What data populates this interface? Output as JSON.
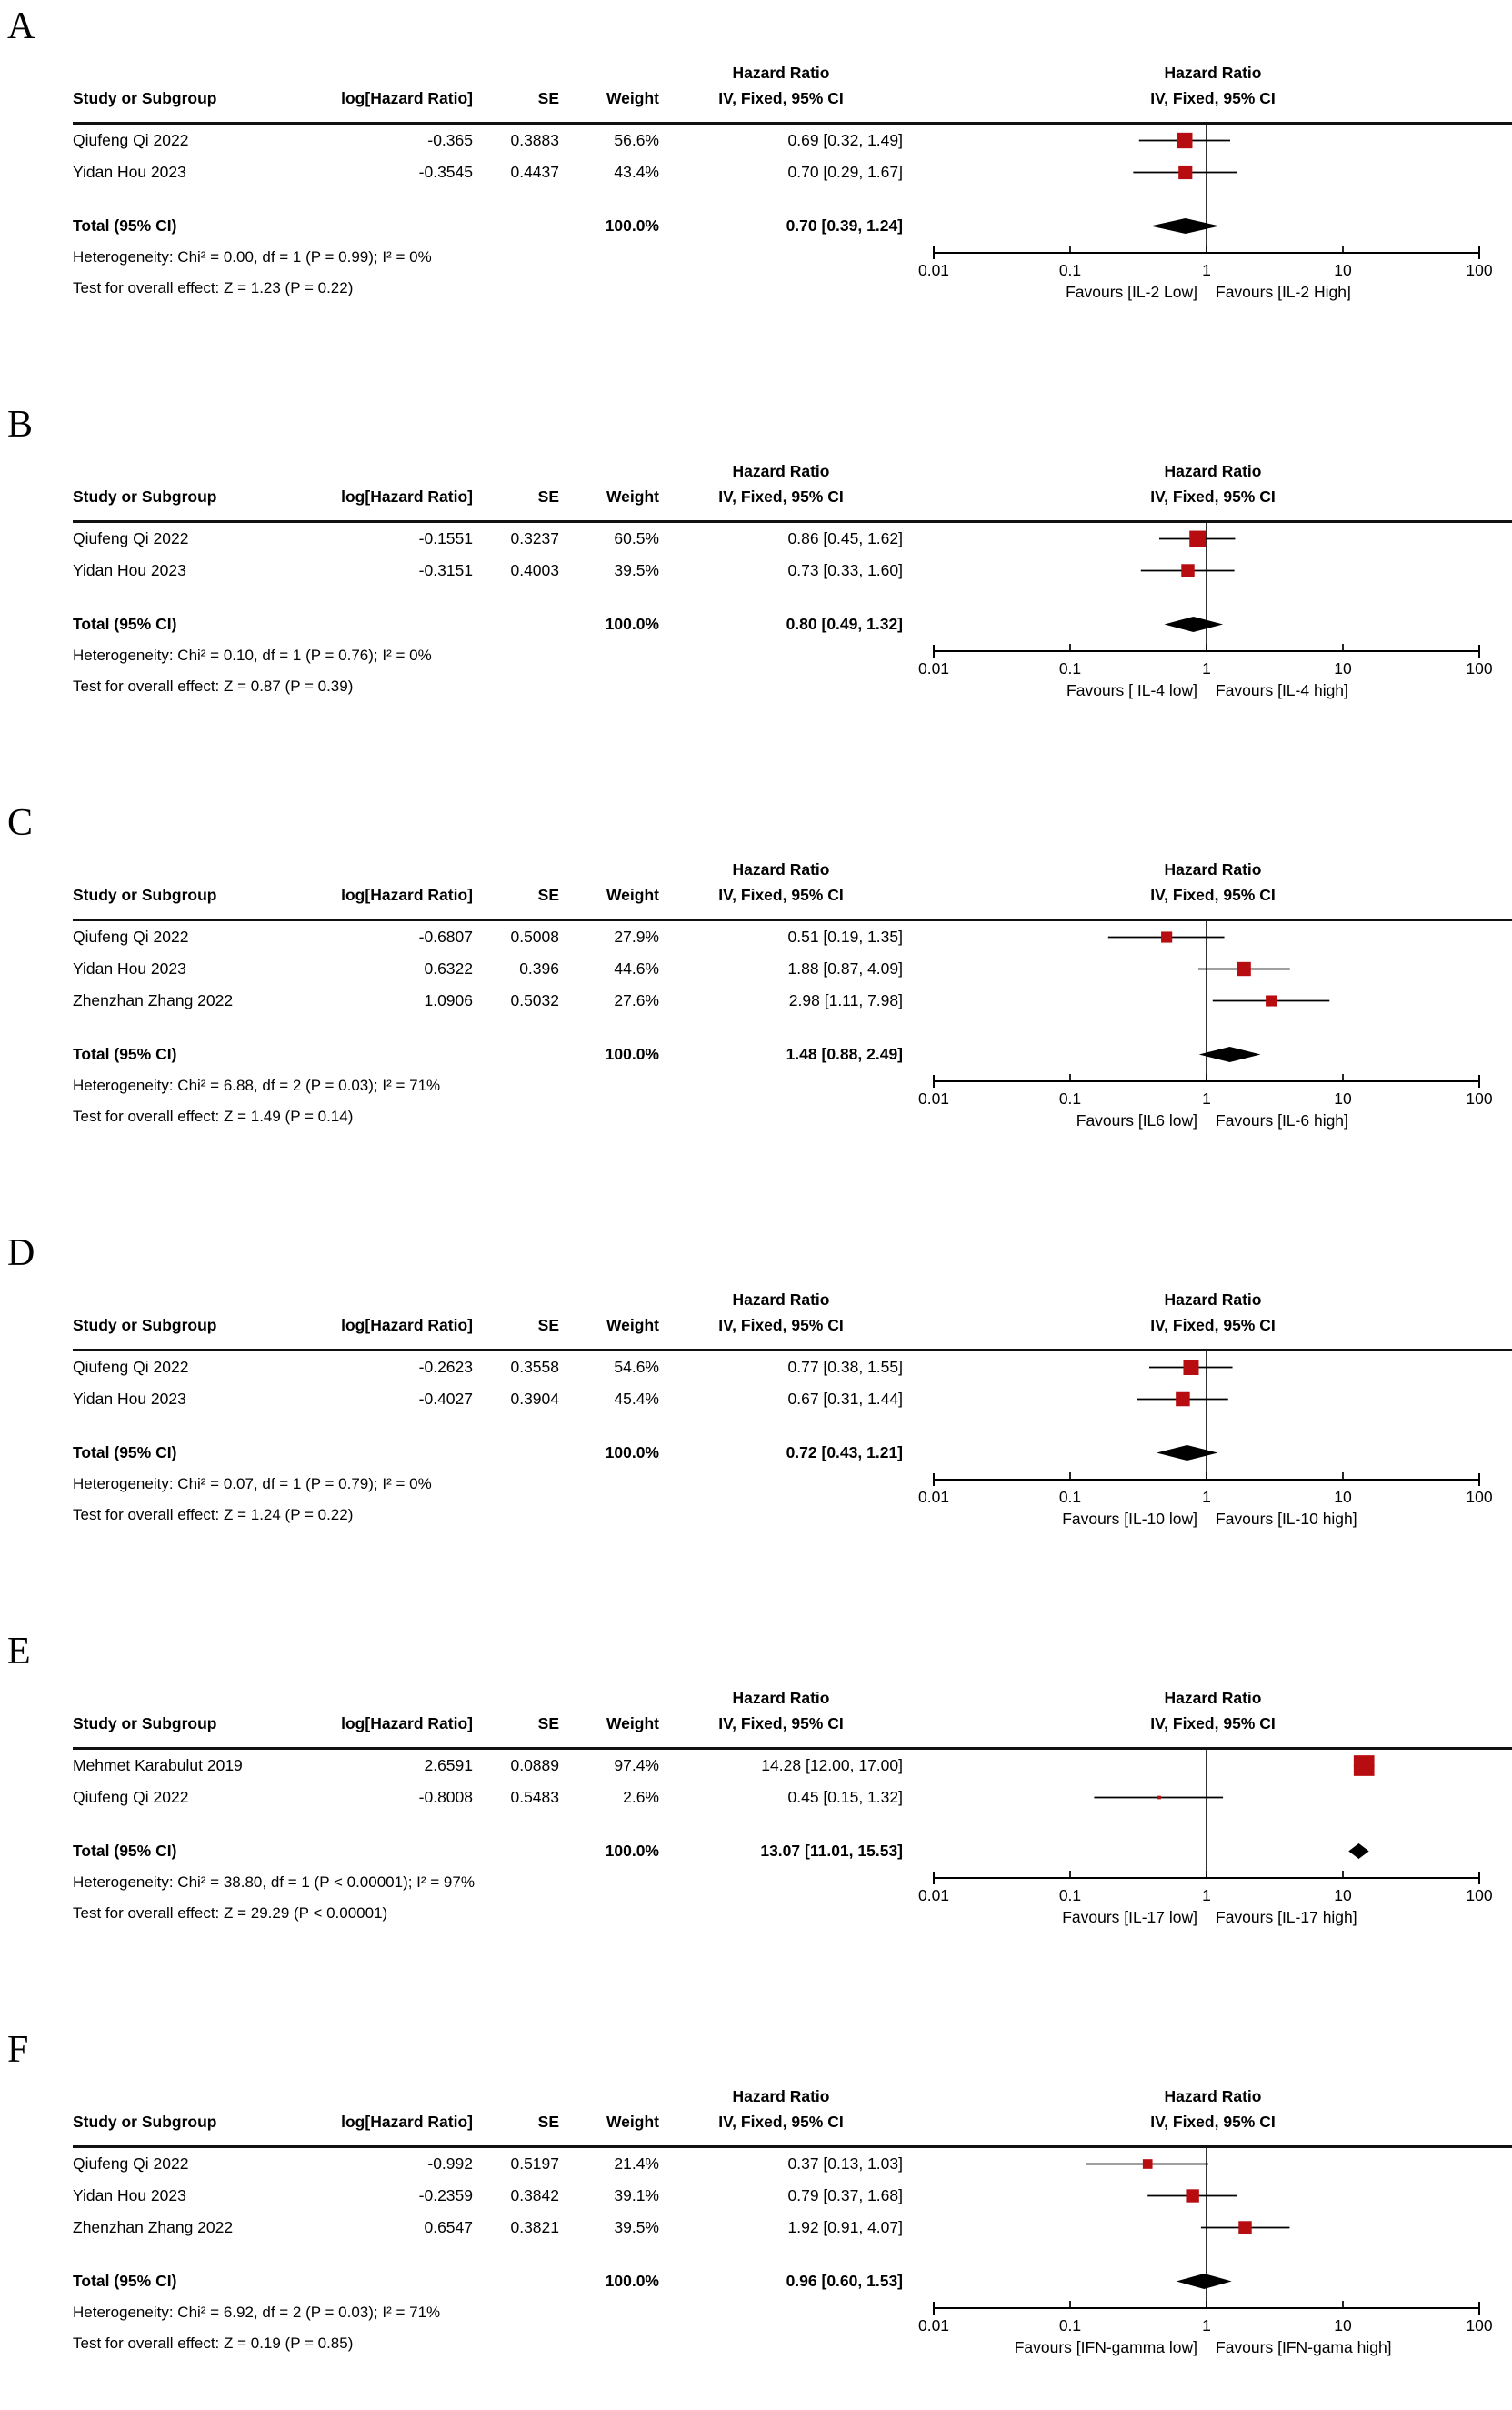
{
  "figure": {
    "background": "#ffffff",
    "text_color": "#000000",
    "square_color": "#b80d10",
    "diamond_color": "#000000"
  },
  "columns": {
    "study": "Study or Subgroup",
    "log_hr": "log[Hazard Ratio]",
    "se": "SE",
    "weight": "Weight",
    "effect": "IV, Fixed, 95% CI",
    "effect_header": "Hazard Ratio"
  },
  "chart_data": {
    "type": "scatter",
    "subtype": "forest-plot-meta-analysis",
    "x_scale": "log10",
    "x_range": [
      0.01,
      100
    ],
    "axis_ticks": [
      "0.01",
      "0.1",
      "1",
      "10",
      "100"
    ],
    "effect_header": "Hazard Ratio",
    "effect_model": "IV, Fixed, 95% CI",
    "panels": [
      {
        "label": "A",
        "studies": [
          {
            "name": "Qiufeng Qi 2022",
            "log_hr": "-0.365",
            "se": "0.3883",
            "weight": "56.6%",
            "ci_text": "0.69 [0.32, 1.49]",
            "hr": 0.69,
            "lo": 0.32,
            "hi": 1.49,
            "weight_pct": 56.6
          },
          {
            "name": "Yidan Hou 2023",
            "log_hr": "-0.3545",
            "se": "0.4437",
            "weight": "43.4%",
            "ci_text": "0.70 [0.29, 1.67]",
            "hr": 0.7,
            "lo": 0.29,
            "hi": 1.67,
            "weight_pct": 43.4
          }
        ],
        "total": {
          "label": "Total (95% CI)",
          "weight": "100.0%",
          "ci_text": "0.70 [0.39, 1.24]",
          "hr": 0.7,
          "lo": 0.39,
          "hi": 1.24
        },
        "heterogeneity": "Heterogeneity: Chi² = 0.00, df = 1 (P = 0.99); I² = 0%",
        "overall_effect": "Test for overall effect: Z = 1.23 (P = 0.22)",
        "favours_left": "Favours [IL-2 Low]",
        "favours_right": "Favours [IL-2 High]"
      },
      {
        "label": "B",
        "studies": [
          {
            "name": "Qiufeng Qi 2022",
            "log_hr": "-0.1551",
            "se": "0.3237",
            "weight": "60.5%",
            "ci_text": "0.86 [0.45, 1.62]",
            "hr": 0.86,
            "lo": 0.45,
            "hi": 1.62,
            "weight_pct": 60.5
          },
          {
            "name": "Yidan Hou 2023",
            "log_hr": "-0.3151",
            "se": "0.4003",
            "weight": "39.5%",
            "ci_text": "0.73 [0.33, 1.60]",
            "hr": 0.73,
            "lo": 0.33,
            "hi": 1.6,
            "weight_pct": 39.5
          }
        ],
        "total": {
          "label": "Total (95% CI)",
          "weight": "100.0%",
          "ci_text": "0.80 [0.49, 1.32]",
          "hr": 0.8,
          "lo": 0.49,
          "hi": 1.32
        },
        "heterogeneity": "Heterogeneity: Chi² = 0.10, df = 1 (P = 0.76); I² = 0%",
        "overall_effect": "Test for overall effect: Z = 0.87 (P = 0.39)",
        "favours_left": "Favours [ IL-4 low]",
        "favours_right": "Favours [IL-4 high]"
      },
      {
        "label": "C",
        "studies": [
          {
            "name": "Qiufeng Qi 2022",
            "log_hr": "-0.6807",
            "se": "0.5008",
            "weight": "27.9%",
            "ci_text": "0.51 [0.19, 1.35]",
            "hr": 0.51,
            "lo": 0.19,
            "hi": 1.35,
            "weight_pct": 27.9
          },
          {
            "name": "Yidan Hou 2023",
            "log_hr": "0.6322",
            "se": "0.396",
            "weight": "44.6%",
            "ci_text": "1.88 [0.87, 4.09]",
            "hr": 1.88,
            "lo": 0.87,
            "hi": 4.09,
            "weight_pct": 44.6
          },
          {
            "name": "Zhenzhan Zhang 2022",
            "log_hr": "1.0906",
            "se": "0.5032",
            "weight": "27.6%",
            "ci_text": "2.98 [1.11, 7.98]",
            "hr": 2.98,
            "lo": 1.11,
            "hi": 7.98,
            "weight_pct": 27.6
          }
        ],
        "total": {
          "label": "Total (95% CI)",
          "weight": "100.0%",
          "ci_text": "1.48 [0.88, 2.49]",
          "hr": 1.48,
          "lo": 0.88,
          "hi": 2.49
        },
        "heterogeneity": "Heterogeneity: Chi² = 6.88, df = 2 (P = 0.03); I² = 71%",
        "overall_effect": "Test for overall effect: Z = 1.49 (P = 0.14)",
        "favours_left": "Favours [IL6 low]",
        "favours_right": "Favours [IL-6 high]"
      },
      {
        "label": "D",
        "studies": [
          {
            "name": "Qiufeng Qi 2022",
            "log_hr": "-0.2623",
            "se": "0.3558",
            "weight": "54.6%",
            "ci_text": "0.77 [0.38, 1.55]",
            "hr": 0.77,
            "lo": 0.38,
            "hi": 1.55,
            "weight_pct": 54.6
          },
          {
            "name": "Yidan Hou 2023",
            "log_hr": "-0.4027",
            "se": "0.3904",
            "weight": "45.4%",
            "ci_text": "0.67 [0.31, 1.44]",
            "hr": 0.67,
            "lo": 0.31,
            "hi": 1.44,
            "weight_pct": 45.4
          }
        ],
        "total": {
          "label": "Total (95% CI)",
          "weight": "100.0%",
          "ci_text": "0.72 [0.43, 1.21]",
          "hr": 0.72,
          "lo": 0.43,
          "hi": 1.21
        },
        "heterogeneity": "Heterogeneity: Chi² = 0.07, df = 1 (P = 0.79); I² = 0%",
        "overall_effect": "Test for overall effect: Z = 1.24 (P = 0.22)",
        "favours_left": "Favours [IL-10 low]",
        "favours_right": "Favours [IL-10 high]"
      },
      {
        "label": "E",
        "studies": [
          {
            "name": "Mehmet Karabulut 2019",
            "log_hr": "2.6591",
            "se": "0.0889",
            "weight": "97.4%",
            "ci_text": "14.28 [12.00, 17.00]",
            "hr": 14.28,
            "lo": 12.0,
            "hi": 17.0,
            "weight_pct": 97.4
          },
          {
            "name": "Qiufeng Qi 2022",
            "log_hr": "-0.8008",
            "se": "0.5483",
            "weight": "2.6%",
            "ci_text": "0.45 [0.15, 1.32]",
            "hr": 0.45,
            "lo": 0.15,
            "hi": 1.32,
            "weight_pct": 2.6
          }
        ],
        "total": {
          "label": "Total (95% CI)",
          "weight": "100.0%",
          "ci_text": "13.07 [11.01, 15.53]",
          "hr": 13.07,
          "lo": 11.01,
          "hi": 15.53
        },
        "heterogeneity": "Heterogeneity: Chi² = 38.80, df = 1 (P < 0.00001); I² = 97%",
        "overall_effect": "Test for overall effect: Z = 29.29 (P < 0.00001)",
        "favours_left": "Favours [IL-17 low]",
        "favours_right": "Favours [IL-17 high]"
      },
      {
        "label": "F",
        "studies": [
          {
            "name": "Qiufeng Qi 2022",
            "log_hr": "-0.992",
            "se": "0.5197",
            "weight": "21.4%",
            "ci_text": "0.37 [0.13, 1.03]",
            "hr": 0.37,
            "lo": 0.13,
            "hi": 1.03,
            "weight_pct": 21.4
          },
          {
            "name": "Yidan Hou 2023",
            "log_hr": "-0.2359",
            "se": "0.3842",
            "weight": "39.1%",
            "ci_text": "0.79 [0.37, 1.68]",
            "hr": 0.79,
            "lo": 0.37,
            "hi": 1.68,
            "weight_pct": 39.1
          },
          {
            "name": "Zhenzhan Zhang 2022",
            "log_hr": "0.6547",
            "se": "0.3821",
            "weight": "39.5%",
            "ci_text": "1.92 [0.91, 4.07]",
            "hr": 1.92,
            "lo": 0.91,
            "hi": 4.07,
            "weight_pct": 39.5
          }
        ],
        "total": {
          "label": "Total (95% CI)",
          "weight": "100.0%",
          "ci_text": "0.96 [0.60, 1.53]",
          "hr": 0.96,
          "lo": 0.6,
          "hi": 1.53
        },
        "heterogeneity": "Heterogeneity: Chi² = 6.92, df = 2 (P = 0.03); I² = 71%",
        "overall_effect": "Test for overall effect: Z = 0.19 (P = 0.85)",
        "favours_left": "Favours [IFN-gamma low]",
        "favours_right": "Favours [IFN-gama high]"
      }
    ]
  }
}
